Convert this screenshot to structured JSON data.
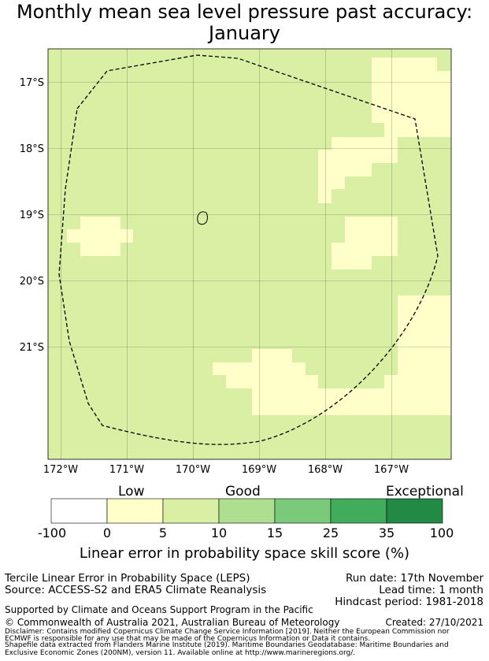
{
  "title": {
    "line1": "Monthly mean sea level pressure past accuracy:",
    "line2": "January"
  },
  "map": {
    "lat_ticks": [
      "17°S",
      "18°S",
      "19°S",
      "20°S",
      "21°S"
    ],
    "lon_ticks": [
      "172°W",
      "171°W",
      "170°W",
      "169°W",
      "168°W",
      "167°W"
    ],
    "lat_range": [
      -22.7,
      -16.5
    ],
    "lon_range": [
      -172.2,
      -166.2
    ],
    "grid": true,
    "background_category": "5-10",
    "colors": {
      "cat_low": "#ffffc9",
      "cat_5_10": "#d9efa4",
      "land_outline": "#000000",
      "eez_boundary": "#000000"
    }
  },
  "colorbar": {
    "categories": [
      "Low",
      "Good",
      "Exceptional"
    ],
    "ticks": [
      "-100",
      "0",
      "5",
      "10",
      "15",
      "25",
      "35",
      "100"
    ],
    "colors": [
      "#ffffff",
      "#ffffc9",
      "#d9efa4",
      "#aede8f",
      "#7bc97a",
      "#41ad5c",
      "#228a45"
    ],
    "label": "Linear error in probability space skill score (%)"
  },
  "info": {
    "left_line1": "Tercile Linear Error in Probability Space (LEPS)",
    "left_line2": "Source: ACCESS-S2 and ERA5 Climate Reanalysis",
    "right_line1": "Run date: 17th November",
    "right_line2": "Lead time: 1 month",
    "right_line3": "Hindcast period: 1981-2018",
    "supported": "Supported by Climate and Oceans Support Program in the Pacific",
    "copyright": "© Commonwealth of Australia 2021, Australian Bureau of Meteorology",
    "created": "Created: 27/10/2021",
    "disclaimer1": "Disclaimer: Contains modified Copernicus Climate Change Service Information [2019]. Neither the European Commission nor",
    "disclaimer2": "ECMWF is responsible for any use that may be made of the Copernicus Information or Data it contains.",
    "shapefile1": "Shapefile data extracted from Flanders Marine Institute (2019). Maritime Boundaries Geodatabase: Maritime Boundaries and",
    "shapefile2": "Exclusive Economic Zones (200NM), version 11. Available online at http://www.marineregions.org/."
  }
}
